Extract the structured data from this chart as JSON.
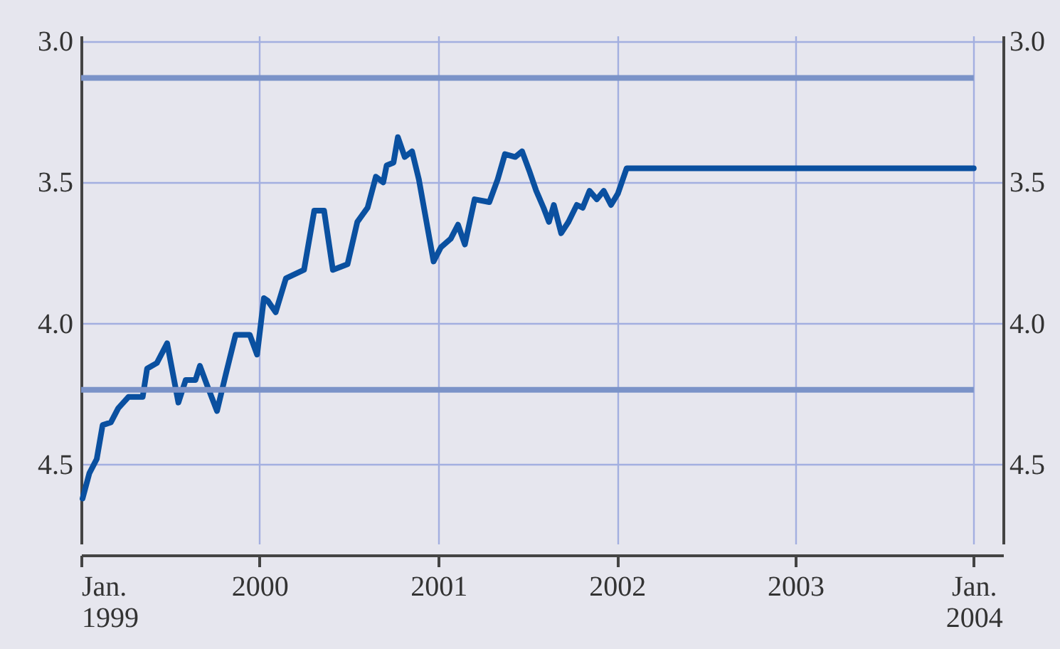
{
  "chart_data": {
    "type": "line",
    "x": [
      "1999-01-04",
      "1999-01-18",
      "1999-02-02",
      "1999-02-14",
      "1999-03-03",
      "1999-03-18",
      "1999-04-08",
      "1999-05-07",
      "1999-05-16",
      "1999-06-05",
      "1999-06-26",
      "1999-07-19",
      "1999-08-03",
      "1999-08-23",
      "1999-09-01",
      "1999-09-16",
      "1999-10-06",
      "1999-10-24",
      "1999-11-13",
      "1999-12-12",
      "1999-12-27",
      "2000-01-10",
      "2000-01-18",
      "2000-02-03",
      "2000-02-24",
      "2000-04-01",
      "2000-04-22",
      "2000-05-12",
      "2000-05-30",
      "2000-06-29",
      "2000-07-19",
      "2000-08-09",
      "2000-08-26",
      "2000-09-10",
      "2000-09-17",
      "2000-10-01",
      "2000-10-10",
      "2000-10-24",
      "2000-11-08",
      "2000-11-22",
      "2000-12-22",
      "2001-01-06",
      "2001-01-26",
      "2001-02-10",
      "2001-02-24",
      "2001-03-16",
      "2001-04-15",
      "2001-05-02",
      "2001-05-17",
      "2001-06-07",
      "2001-06-21",
      "2001-07-06",
      "2001-07-20",
      "2001-08-04",
      "2001-08-15",
      "2001-08-25",
      "2001-09-09",
      "2001-09-24",
      "2001-10-11",
      "2001-10-23",
      "2001-11-06",
      "2001-11-21",
      "2001-12-05",
      "2001-12-20",
      "2002-01-03",
      "2002-01-21",
      "2004-01-01"
    ],
    "series": [
      {
        "color": "#0a50a0",
        "values": [
          4.62,
          4.53,
          4.48,
          4.36,
          4.35,
          4.3,
          4.26,
          4.26,
          4.16,
          4.14,
          4.07,
          4.28,
          4.2,
          4.2,
          4.15,
          4.22,
          4.31,
          4.18,
          4.04,
          4.04,
          4.11,
          3.91,
          3.92,
          3.96,
          3.84,
          3.81,
          3.6,
          3.6,
          3.81,
          3.79,
          3.64,
          3.59,
          3.48,
          3.5,
          3.44,
          3.43,
          3.34,
          3.41,
          3.39,
          3.49,
          3.78,
          3.73,
          3.7,
          3.65,
          3.72,
          3.56,
          3.57,
          3.49,
          3.4,
          3.41,
          3.39,
          3.46,
          3.53,
          3.59,
          3.64,
          3.58,
          3.68,
          3.64,
          3.58,
          3.59,
          3.53,
          3.56,
          3.53,
          3.58,
          3.54,
          3.45,
          3.45
        ]
      }
    ],
    "xlim": [
      "1999-01-01",
      "2004-03-01"
    ],
    "xticks": [
      {
        "value": "1999-01-01",
        "label": "Jan.\n1999"
      },
      {
        "value": "2000-01-01",
        "label": "2000"
      },
      {
        "value": "2001-01-01",
        "label": "2001"
      },
      {
        "value": "2002-01-01",
        "label": "2002"
      },
      {
        "value": "2003-01-01",
        "label": "2003"
      },
      {
        "value": "2004-01-01",
        "label": "Jan.\n2004"
      }
    ],
    "ylim": [
      4.78,
      2.98
    ],
    "yticks": [
      {
        "value": 3.0,
        "label": "3.0"
      },
      {
        "value": 3.5,
        "label": "3.5"
      },
      {
        "value": 4.0,
        "label": "4.0"
      },
      {
        "value": 4.5,
        "label": "4.5"
      }
    ],
    "y2lim": [
      4.78,
      2.98
    ],
    "y2ticks": [
      {
        "value": 3.0,
        "label": "3.0"
      },
      {
        "value": 3.5,
        "label": "3.5"
      },
      {
        "value": 4.0,
        "label": "4.0"
      },
      {
        "value": 4.5,
        "label": "4.5"
      }
    ],
    "ref_lines": [
      {
        "axis": "y",
        "value": 3.13,
        "color": "#7b93c8"
      },
      {
        "axis": "y",
        "value": 4.235,
        "color": "#7b93c8"
      }
    ],
    "grid": true,
    "legend": false,
    "marker": "none",
    "line_style": "solid"
  }
}
